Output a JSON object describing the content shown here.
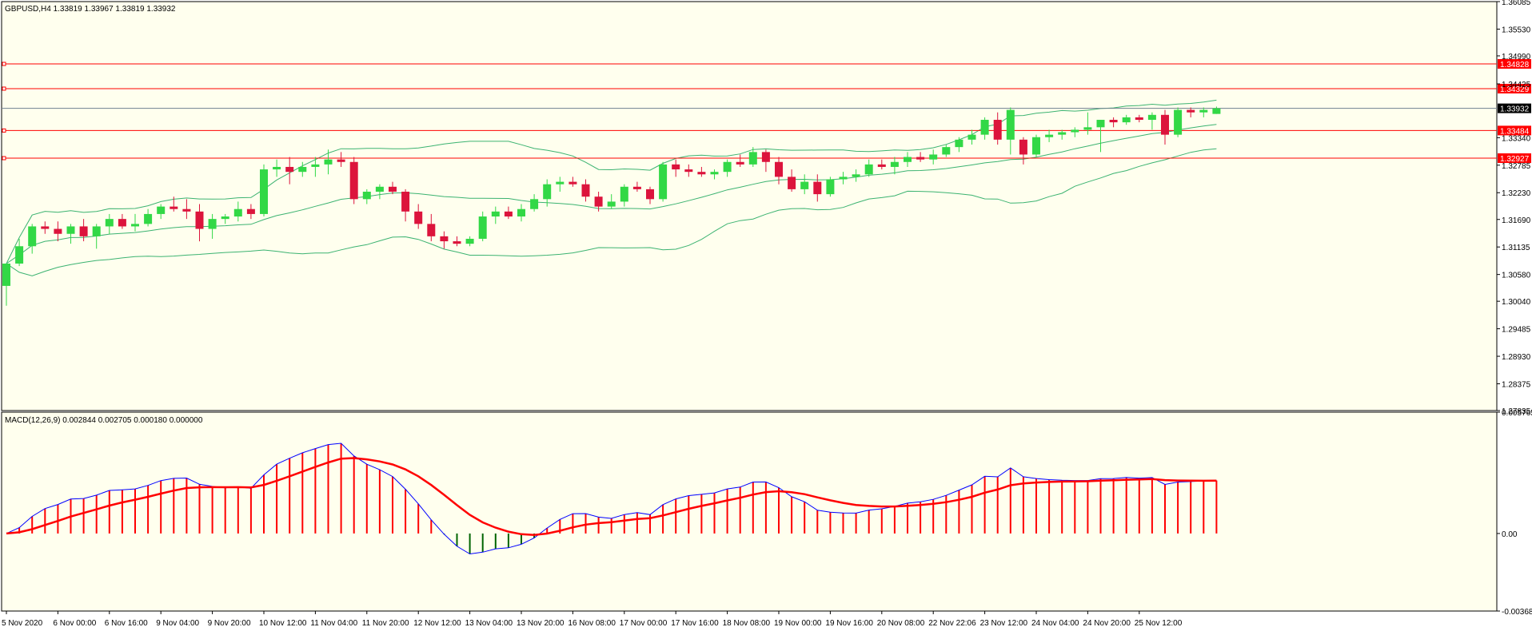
{
  "colors": {
    "background": "#ffffee",
    "bull": "#32d846",
    "bear": "#dc143c",
    "bands": "#3cb371",
    "level": "#ff0000",
    "macd_line": "#0000ff",
    "signal_line": "#ff0000",
    "hist_pos": "#ff0000",
    "hist_neg": "#006400",
    "current_tag": "#000000"
  },
  "header": {
    "symbol_label": "GBPUSD,H4  1.33819 1.33967 1.33819 1.33932",
    "macd_label": "MACD(12,26,9) 0.002844 0.002705 0.000180 0.000000"
  },
  "chart_data": [
    {
      "type": "candlestick",
      "symbol": "GBPUSD",
      "timeframe": "H4",
      "ylim": [
        1.27835,
        1.36085
      ],
      "y_ticks": [
        "1.36085",
        "1.35530",
        "1.34990",
        "1.34425",
        "1.33340",
        "1.32785",
        "1.32230",
        "1.31690",
        "1.31135",
        "1.30580",
        "1.30040",
        "1.29485",
        "1.28930",
        "1.28375",
        "1.27835"
      ],
      "x_ticks": [
        "5 Nov 2020",
        "6 Nov 00:00",
        "6 Nov 16:00",
        "9 Nov 04:00",
        "9 Nov 20:00",
        "10 Nov 12:00",
        "11 Nov 04:00",
        "11 Nov 20:00",
        "12 Nov 12:00",
        "13 Nov 04:00",
        "13 Nov 20:00",
        "16 Nov 08:00",
        "17 Nov 00:00",
        "17 Nov 16:00",
        "18 Nov 08:00",
        "19 Nov 00:00",
        "19 Nov 16:00",
        "20 Nov 08:00",
        "22 Nov 22:06",
        "23 Nov 12:00",
        "24 Nov 04:00",
        "24 Nov 20:00",
        "25 Nov 12:00"
      ],
      "x_tick_index": [
        0,
        4,
        8,
        12,
        16,
        20,
        24,
        28,
        32,
        36,
        40,
        44,
        48,
        52,
        56,
        60,
        64,
        68,
        72,
        76,
        80,
        84,
        88
      ],
      "horizontal_levels": [
        1.34828,
        1.34329,
        1.33484,
        1.32927
      ],
      "current_price": 1.33932,
      "candles": [
        [
          1.3035,
          1.308,
          1.2995,
          1.308
        ],
        [
          1.308,
          1.313,
          1.3075,
          1.3115
        ],
        [
          1.3115,
          1.316,
          1.31,
          1.3155
        ],
        [
          1.3155,
          1.3165,
          1.314,
          1.315
        ],
        [
          1.315,
          1.3165,
          1.3125,
          1.314
        ],
        [
          1.314,
          1.316,
          1.312,
          1.3155
        ],
        [
          1.3155,
          1.317,
          1.3125,
          1.3135
        ],
        [
          1.3135,
          1.316,
          1.311,
          1.3155
        ],
        [
          1.3155,
          1.318,
          1.314,
          1.317
        ],
        [
          1.317,
          1.318,
          1.315,
          1.3155
        ],
        [
          1.3155,
          1.318,
          1.3145,
          1.316
        ],
        [
          1.316,
          1.319,
          1.3155,
          1.318
        ],
        [
          1.318,
          1.32,
          1.317,
          1.3195
        ],
        [
          1.3195,
          1.3215,
          1.3185,
          1.319
        ],
        [
          1.319,
          1.321,
          1.317,
          1.3185
        ],
        [
          1.3185,
          1.32,
          1.3125,
          1.315
        ],
        [
          1.315,
          1.318,
          1.313,
          1.317
        ],
        [
          1.317,
          1.318,
          1.316,
          1.3175
        ],
        [
          1.3175,
          1.3205,
          1.3165,
          1.319
        ],
        [
          1.319,
          1.32,
          1.317,
          1.318
        ],
        [
          1.318,
          1.328,
          1.3175,
          1.327
        ],
        [
          1.327,
          1.329,
          1.3255,
          1.3275
        ],
        [
          1.3275,
          1.3295,
          1.324,
          1.3265
        ],
        [
          1.3265,
          1.3285,
          1.3255,
          1.3275
        ],
        [
          1.3275,
          1.3295,
          1.3255,
          1.328
        ],
        [
          1.328,
          1.331,
          1.326,
          1.329
        ],
        [
          1.329,
          1.3305,
          1.3275,
          1.3285
        ],
        [
          1.3285,
          1.3295,
          1.32,
          1.321
        ],
        [
          1.321,
          1.323,
          1.32,
          1.3225
        ],
        [
          1.3225,
          1.324,
          1.321,
          1.3235
        ],
        [
          1.3235,
          1.3245,
          1.322,
          1.3225
        ],
        [
          1.3225,
          1.323,
          1.3165,
          1.3185
        ],
        [
          1.3185,
          1.32,
          1.315,
          1.316
        ],
        [
          1.316,
          1.318,
          1.3125,
          1.3135
        ],
        [
          1.3135,
          1.3145,
          1.311,
          1.3125
        ],
        [
          1.3125,
          1.3135,
          1.3115,
          1.312
        ],
        [
          1.312,
          1.3135,
          1.3115,
          1.313
        ],
        [
          1.313,
          1.3185,
          1.3125,
          1.3175
        ],
        [
          1.3175,
          1.3195,
          1.316,
          1.3185
        ],
        [
          1.3185,
          1.3195,
          1.317,
          1.3175
        ],
        [
          1.3175,
          1.32,
          1.3165,
          1.319
        ],
        [
          1.319,
          1.322,
          1.3185,
          1.321
        ],
        [
          1.321,
          1.325,
          1.3195,
          1.324
        ],
        [
          1.324,
          1.3255,
          1.3225,
          1.3245
        ],
        [
          1.3245,
          1.3255,
          1.3235,
          1.324
        ],
        [
          1.324,
          1.325,
          1.3205,
          1.3215
        ],
        [
          1.3215,
          1.3225,
          1.3185,
          1.3195
        ],
        [
          1.3195,
          1.322,
          1.319,
          1.3205
        ],
        [
          1.3205,
          1.324,
          1.3195,
          1.3235
        ],
        [
          1.3235,
          1.3245,
          1.3225,
          1.323
        ],
        [
          1.323,
          1.3235,
          1.32,
          1.321
        ],
        [
          1.321,
          1.3285,
          1.3205,
          1.328
        ],
        [
          1.328,
          1.329,
          1.3255,
          1.327
        ],
        [
          1.327,
          1.328,
          1.3255,
          1.3265
        ],
        [
          1.3265,
          1.3275,
          1.3255,
          1.326
        ],
        [
          1.326,
          1.327,
          1.325,
          1.3265
        ],
        [
          1.3265,
          1.329,
          1.3255,
          1.3285
        ],
        [
          1.3285,
          1.33,
          1.3275,
          1.328
        ],
        [
          1.328,
          1.3315,
          1.3275,
          1.3305
        ],
        [
          1.3305,
          1.331,
          1.3265,
          1.3285
        ],
        [
          1.3285,
          1.3295,
          1.324,
          1.3255
        ],
        [
          1.3255,
          1.327,
          1.3225,
          1.323
        ],
        [
          1.323,
          1.326,
          1.322,
          1.3245
        ],
        [
          1.3245,
          1.326,
          1.3205,
          1.322
        ],
        [
          1.322,
          1.3255,
          1.3215,
          1.325
        ],
        [
          1.325,
          1.3265,
          1.324,
          1.3255
        ],
        [
          1.3255,
          1.327,
          1.3245,
          1.326
        ],
        [
          1.326,
          1.329,
          1.3255,
          1.328
        ],
        [
          1.328,
          1.329,
          1.327,
          1.3275
        ],
        [
          1.3275,
          1.3295,
          1.326,
          1.3285
        ],
        [
          1.3285,
          1.3305,
          1.3275,
          1.3295
        ],
        [
          1.3295,
          1.3305,
          1.3285,
          1.329
        ],
        [
          1.329,
          1.331,
          1.328,
          1.33
        ],
        [
          1.33,
          1.332,
          1.3295,
          1.3315
        ],
        [
          1.3315,
          1.3335,
          1.3305,
          1.333
        ],
        [
          1.333,
          1.335,
          1.332,
          1.334
        ],
        [
          1.334,
          1.3375,
          1.333,
          1.337
        ],
        [
          1.337,
          1.3385,
          1.332,
          1.333
        ],
        [
          1.333,
          1.3395,
          1.33,
          1.339
        ],
        [
          1.333,
          1.3335,
          1.328,
          1.33
        ],
        [
          1.33,
          1.334,
          1.3295,
          1.3335
        ],
        [
          1.3335,
          1.335,
          1.3325,
          1.334
        ],
        [
          1.334,
          1.335,
          1.333,
          1.3345
        ],
        [
          1.3345,
          1.3355,
          1.3335,
          1.335
        ],
        [
          1.335,
          1.3385,
          1.334,
          1.3355
        ],
        [
          1.3355,
          1.337,
          1.3305,
          1.337
        ],
        [
          1.337,
          1.3375,
          1.3355,
          1.3365
        ],
        [
          1.3365,
          1.338,
          1.336,
          1.3375
        ],
        [
          1.3375,
          1.338,
          1.3365,
          1.337
        ],
        [
          1.337,
          1.3385,
          1.335,
          1.338
        ],
        [
          1.338,
          1.339,
          1.332,
          1.334
        ],
        [
          1.334,
          1.3395,
          1.3335,
          1.339
        ],
        [
          1.339,
          1.3395,
          1.3375,
          1.3385
        ],
        [
          1.3385,
          1.3395,
          1.3375,
          1.339
        ],
        [
          1.33819,
          1.33967,
          1.33819,
          1.33932
        ]
      ]
    },
    {
      "type": "line",
      "name": "MACD(12,26,9)",
      "ylim": [
        -0.003684,
        0.005765
      ],
      "y_ticks": [
        "0.005765",
        "0.00",
        "-0.003684"
      ],
      "values": {
        "macd_main": 0.002844,
        "signal": 0.002705,
        "osma": 0.00018
      }
    }
  ]
}
